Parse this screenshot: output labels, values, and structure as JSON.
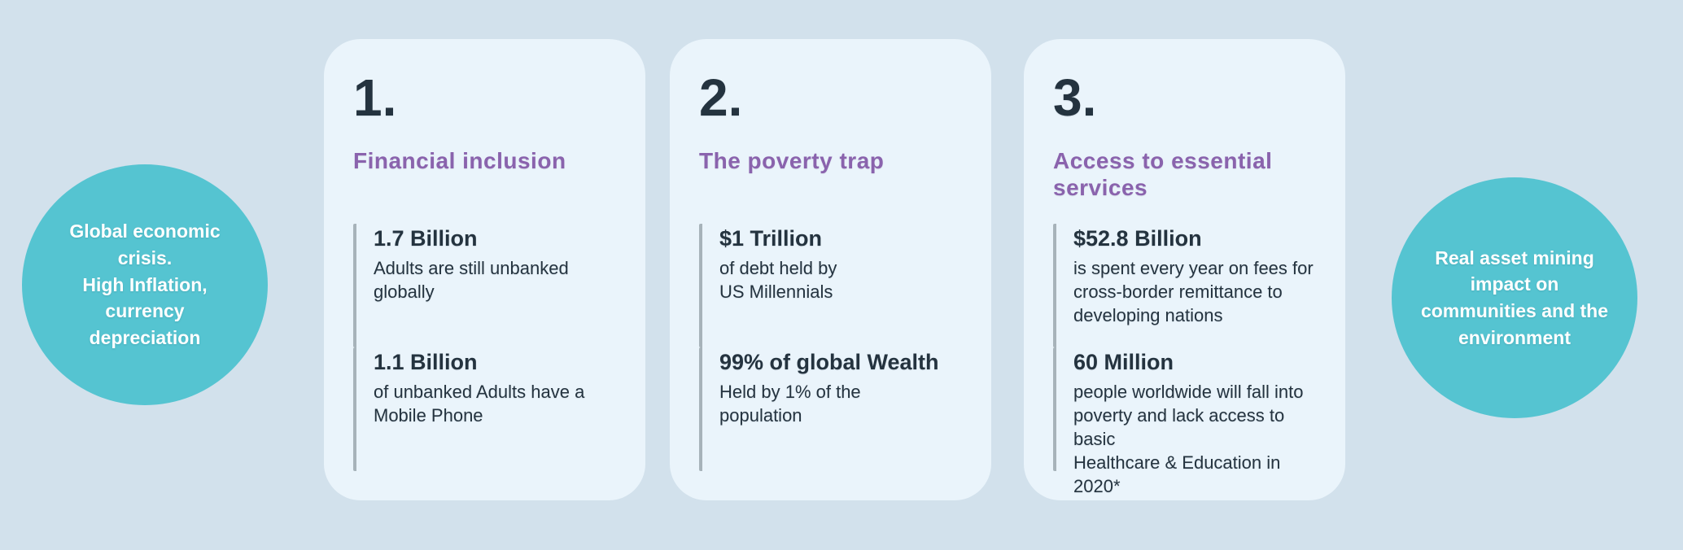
{
  "colors": {
    "background": "#d2e1ec",
    "card_bg": "#eaf4fb",
    "circle_bg": "#55c4d1",
    "accent_purple": "#8a63ad",
    "text_dark": "#24333f",
    "stat_bar": "#a7b3ba",
    "circle_text": "#ffffff"
  },
  "left_circle": {
    "text": "Global economic\ncrisis.\nHigh Inflation,\ncurrency\ndepreciation"
  },
  "right_circle": {
    "text": "Real asset  mining\nimpact on\ncommunities and the\nenvironment"
  },
  "cards": [
    {
      "number": "1.",
      "title": "Financial inclusion",
      "stats": [
        {
          "value": "1.7 Billion",
          "desc": "Adults are still unbanked\nglobally"
        },
        {
          "value": "1.1 Billion",
          "desc": "of unbanked Adults have a\nMobile Phone"
        }
      ]
    },
    {
      "number": "2.",
      "title": "The poverty trap",
      "stats": [
        {
          "value": "$1 Trillion",
          "desc": "of debt held by\nUS Millennials"
        },
        {
          "value": "99% of global Wealth",
          "desc": "Held by 1% of the\npopulation"
        }
      ]
    },
    {
      "number": "3.",
      "title": "Access to essential\nservices",
      "stats": [
        {
          "value": "$52.8 Billion",
          "desc": "is spent every year on fees for\ncross-border remittance to\ndeveloping nations"
        },
        {
          "value": "60 Million",
          "desc": "people worldwide will fall into\npoverty and lack access to basic\nHealthcare & Education in 2020*"
        }
      ]
    }
  ]
}
